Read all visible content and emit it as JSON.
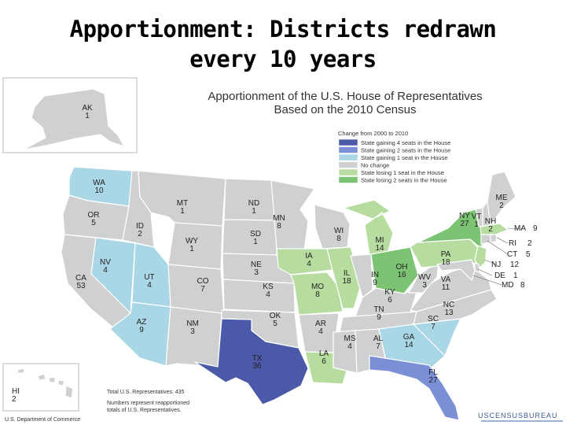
{
  "slide_title": [
    "Apportionment: Districts redrawn",
    "every 10 years"
  ],
  "map_title": [
    "Apportionment of the U.S. House of Representatives",
    "Based on the 2010 Census"
  ],
  "legend": {
    "heading": "Change from 2000 to 2010",
    "items": [
      {
        "label": "State gaining 4 seats in the House",
        "color": "#4a5aa8"
      },
      {
        "label": "State gaining 2 seats in the House",
        "color": "#7b8fd6"
      },
      {
        "label": "State gaining 1 seat in the House",
        "color": "#a9d7e6"
      },
      {
        "label": "No change",
        "color": "#cfd0d1"
      },
      {
        "label": "State losing 1 seat in the House",
        "color": "#b7dc9f"
      },
      {
        "label": "State losing 2 seats in the House",
        "color": "#7cc474"
      }
    ]
  },
  "states": [
    {
      "abbr": "AK",
      "seats": "1",
      "color": "#cfd0d1"
    },
    {
      "abbr": "HI",
      "seats": "2",
      "color": "#cfd0d1"
    },
    {
      "abbr": "WA",
      "seats": "10",
      "color": "#a9d7e6"
    },
    {
      "abbr": "OR",
      "seats": "5",
      "color": "#cfd0d1"
    },
    {
      "abbr": "CA",
      "seats": "53",
      "color": "#cfd0d1"
    },
    {
      "abbr": "NV",
      "seats": "4",
      "color": "#a9d7e6"
    },
    {
      "abbr": "ID",
      "seats": "2",
      "color": "#cfd0d1"
    },
    {
      "abbr": "MT",
      "seats": "1",
      "color": "#cfd0d1"
    },
    {
      "abbr": "WY",
      "seats": "1",
      "color": "#cfd0d1"
    },
    {
      "abbr": "UT",
      "seats": "4",
      "color": "#a9d7e6"
    },
    {
      "abbr": "AZ",
      "seats": "9",
      "color": "#a9d7e6"
    },
    {
      "abbr": "CO",
      "seats": "7",
      "color": "#cfd0d1"
    },
    {
      "abbr": "NM",
      "seats": "3",
      "color": "#cfd0d1"
    },
    {
      "abbr": "ND",
      "seats": "1",
      "color": "#cfd0d1"
    },
    {
      "abbr": "SD",
      "seats": "1",
      "color": "#cfd0d1"
    },
    {
      "abbr": "NE",
      "seats": "3",
      "color": "#cfd0d1"
    },
    {
      "abbr": "KS",
      "seats": "4",
      "color": "#cfd0d1"
    },
    {
      "abbr": "OK",
      "seats": "5",
      "color": "#cfd0d1"
    },
    {
      "abbr": "TX",
      "seats": "36",
      "color": "#4a5aa8"
    },
    {
      "abbr": "MN",
      "seats": "8",
      "color": "#cfd0d1"
    },
    {
      "abbr": "IA",
      "seats": "4",
      "color": "#b7dc9f"
    },
    {
      "abbr": "MO",
      "seats": "8",
      "color": "#b7dc9f"
    },
    {
      "abbr": "AR",
      "seats": "4",
      "color": "#cfd0d1"
    },
    {
      "abbr": "LA",
      "seats": "6",
      "color": "#b7dc9f"
    },
    {
      "abbr": "WI",
      "seats": "8",
      "color": "#cfd0d1"
    },
    {
      "abbr": "IL",
      "seats": "18",
      "color": "#b7dc9f"
    },
    {
      "abbr": "MI",
      "seats": "14",
      "color": "#b7dc9f"
    },
    {
      "abbr": "IN",
      "seats": "9",
      "color": "#cfd0d1"
    },
    {
      "abbr": "OH",
      "seats": "16",
      "color": "#7cc474"
    },
    {
      "abbr": "KY",
      "seats": "6",
      "color": "#cfd0d1"
    },
    {
      "abbr": "TN",
      "seats": "9",
      "color": "#cfd0d1"
    },
    {
      "abbr": "MS",
      "seats": "4",
      "color": "#cfd0d1"
    },
    {
      "abbr": "AL",
      "seats": "7",
      "color": "#cfd0d1"
    },
    {
      "abbr": "GA",
      "seats": "14",
      "color": "#a9d7e6"
    },
    {
      "abbr": "FL",
      "seats": "27",
      "color": "#7b8fd6"
    },
    {
      "abbr": "SC",
      "seats": "7",
      "color": "#a9d7e6"
    },
    {
      "abbr": "NC",
      "seats": "13",
      "color": "#cfd0d1"
    },
    {
      "abbr": "VA",
      "seats": "11",
      "color": "#cfd0d1"
    },
    {
      "abbr": "WV",
      "seats": "3",
      "color": "#cfd0d1"
    },
    {
      "abbr": "PA",
      "seats": "18",
      "color": "#b7dc9f"
    },
    {
      "abbr": "NY",
      "seats": "27",
      "color": "#7cc474"
    },
    {
      "abbr": "VT",
      "seats": "1",
      "color": "#cfd0d1"
    },
    {
      "abbr": "NH",
      "seats": "2",
      "color": "#cfd0d1"
    },
    {
      "abbr": "ME",
      "seats": "2",
      "color": "#cfd0d1"
    },
    {
      "abbr": "MA",
      "seats": "9",
      "color": "#b7dc9f"
    },
    {
      "abbr": "RI",
      "seats": "2",
      "color": "#cfd0d1"
    },
    {
      "abbr": "CT",
      "seats": "5",
      "color": "#cfd0d1"
    },
    {
      "abbr": "NJ",
      "seats": "12",
      "color": "#b7dc9f"
    },
    {
      "abbr": "DE",
      "seats": "1",
      "color": "#cfd0d1"
    },
    {
      "abbr": "MD",
      "seats": "8",
      "color": "#cfd0d1"
    }
  ],
  "footnote": {
    "total": "Total U.S. Representatives: 435",
    "note": [
      "Numbers represent reapportioned",
      "totals of U.S. Representatives."
    ]
  },
  "source": "U.S. Department of Commerce",
  "logo": "USCENSUSBUREAU"
}
